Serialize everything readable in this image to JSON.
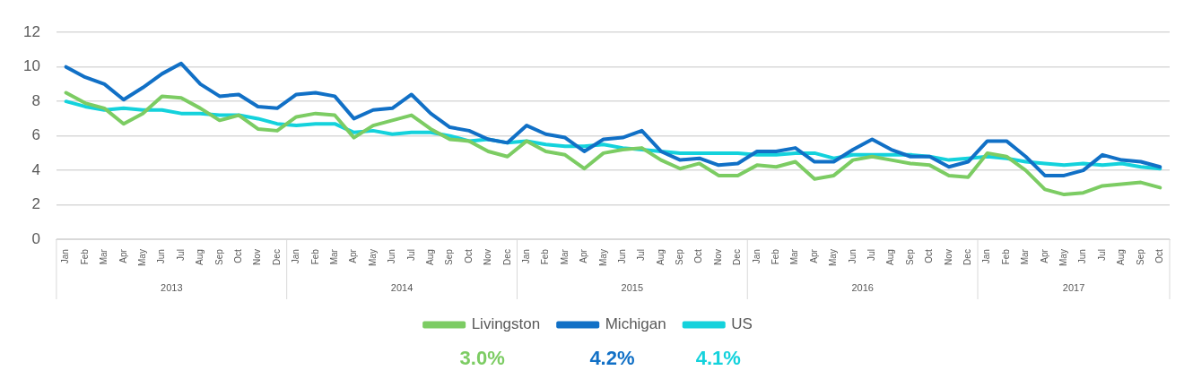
{
  "chart_data": {
    "type": "line",
    "categories": [
      "Jan",
      "Feb",
      "Mar",
      "Apr",
      "May",
      "Jun",
      "Jul",
      "Aug",
      "Sep",
      "Oct",
      "Nov",
      "Dec",
      "Jan",
      "Feb",
      "Mar",
      "Apr",
      "May",
      "Jun",
      "Jul",
      "Aug",
      "Sep",
      "Oct",
      "Nov",
      "Dec",
      "Jan",
      "Feb",
      "Mar",
      "Apr",
      "May",
      "Jun",
      "Jul",
      "Aug",
      "Sep",
      "Oct",
      "Nov",
      "Dec",
      "Jan",
      "Feb",
      "Mar",
      "Apr",
      "May",
      "Jun",
      "Jul",
      "Aug",
      "Sep",
      "Oct",
      "Nov",
      "Dec",
      "Jan",
      "Feb",
      "Mar",
      "Apr",
      "May",
      "Jun",
      "Jul",
      "Aug",
      "Sep",
      "Oct"
    ],
    "series": [
      {
        "name": "Livingston",
        "color": "#7ccc63",
        "values": [
          8.5,
          7.9,
          7.6,
          6.7,
          7.3,
          8.3,
          8.2,
          7.6,
          6.9,
          7.2,
          6.4,
          6.3,
          7.1,
          7.3,
          7.2,
          5.9,
          6.6,
          6.9,
          7.2,
          6.4,
          5.8,
          5.7,
          5.1,
          4.8,
          5.7,
          5.1,
          4.9,
          4.1,
          5.0,
          5.2,
          5.3,
          4.6,
          4.1,
          4.4,
          3.7,
          3.7,
          4.3,
          4.2,
          4.5,
          3.5,
          3.7,
          4.6,
          4.8,
          4.6,
          4.4,
          4.3,
          3.7,
          3.6,
          5.0,
          4.8,
          4.0,
          2.9,
          2.6,
          2.7,
          3.1,
          3.2,
          3.3,
          3.0
        ]
      },
      {
        "name": "Michigan",
        "color": "#1170c6",
        "values": [
          10.0,
          9.4,
          9.0,
          8.1,
          8.8,
          9.6,
          10.2,
          9.0,
          8.3,
          8.4,
          7.7,
          7.6,
          8.4,
          8.5,
          8.3,
          7.0,
          7.5,
          7.6,
          8.4,
          7.3,
          6.5,
          6.3,
          5.8,
          5.6,
          6.6,
          6.1,
          5.9,
          5.1,
          5.8,
          5.9,
          6.3,
          5.1,
          4.6,
          4.7,
          4.3,
          4.4,
          5.1,
          5.1,
          5.3,
          4.5,
          4.5,
          5.2,
          5.8,
          5.2,
          4.8,
          4.8,
          4.2,
          4.5,
          5.7,
          5.7,
          4.8,
          3.7,
          3.7,
          4.0,
          4.9,
          4.6,
          4.5,
          4.2
        ]
      },
      {
        "name": "US",
        "color": "#14d2dc",
        "values": [
          8.0,
          7.7,
          7.5,
          7.6,
          7.5,
          7.5,
          7.3,
          7.3,
          7.2,
          7.2,
          7.0,
          6.7,
          6.6,
          6.7,
          6.7,
          6.2,
          6.3,
          6.1,
          6.2,
          6.2,
          6.0,
          5.7,
          5.8,
          5.6,
          5.7,
          5.5,
          5.4,
          5.4,
          5.5,
          5.3,
          5.2,
          5.1,
          5.0,
          5.0,
          5.0,
          5.0,
          4.9,
          4.9,
          5.0,
          5.0,
          4.7,
          4.9,
          4.9,
          4.9,
          4.9,
          4.8,
          4.6,
          4.7,
          4.8,
          4.7,
          4.5,
          4.4,
          4.3,
          4.4,
          4.3,
          4.4,
          4.2,
          4.1
        ]
      }
    ],
    "ylim": [
      0,
      12
    ],
    "yticks": [
      0,
      2,
      4,
      6,
      8,
      10,
      12
    ],
    "grid": "y",
    "legend": "bottom",
    "marker": "none",
    "line_style": "solid",
    "annotations": [
      "2013",
      "2014",
      "2015",
      "2016",
      "2017",
      "3.0%",
      "4.2%",
      "4.1%"
    ]
  }
}
